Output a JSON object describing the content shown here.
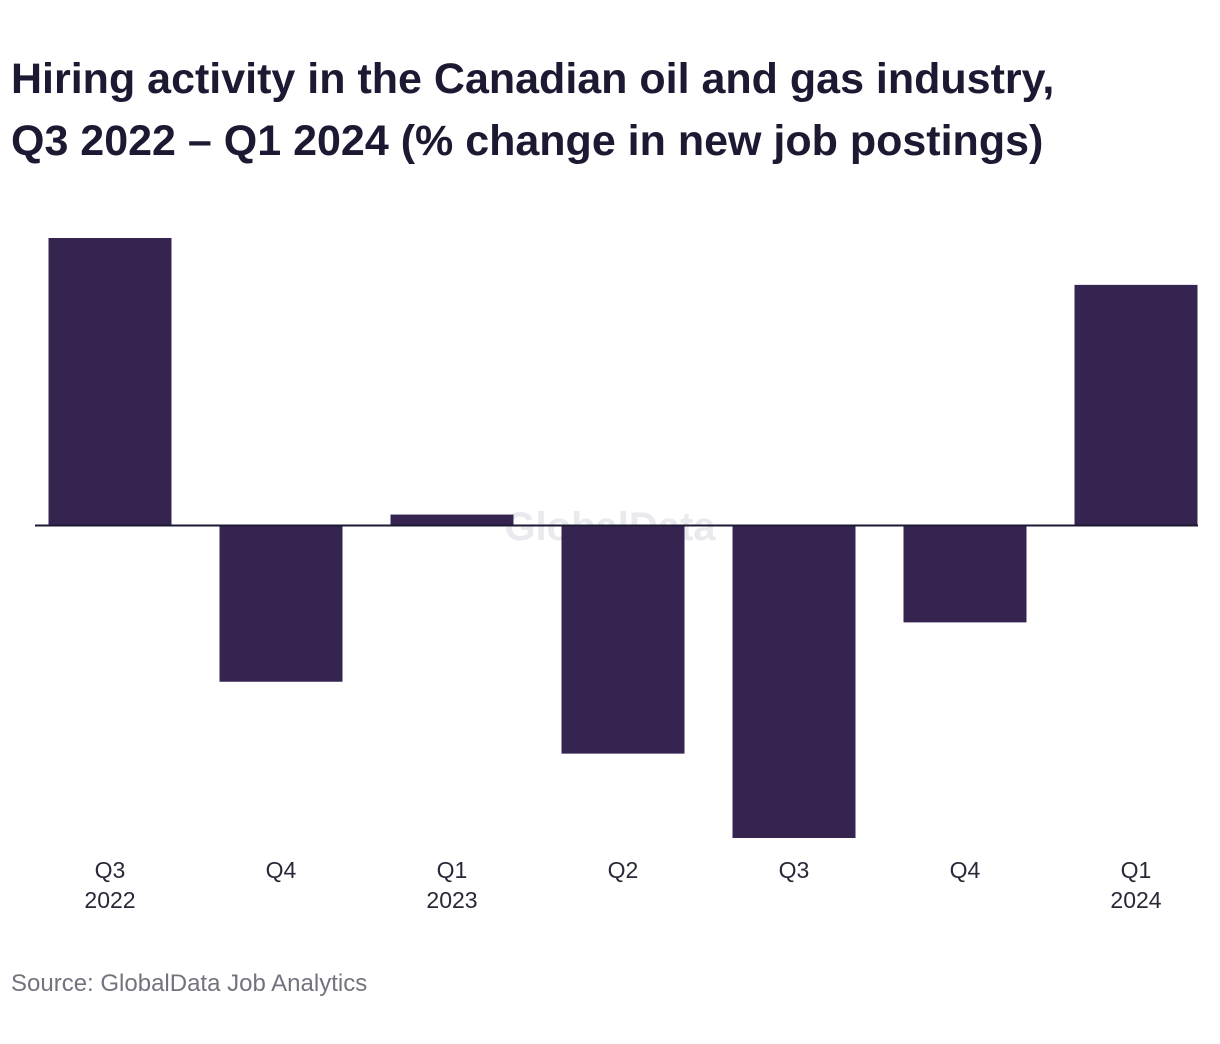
{
  "title": {
    "line1": "Hiring activity in the Canadian oil and gas industry,",
    "line2": "Q3 2022 – Q1 2024 (% change in new job postings)"
  },
  "watermark": "GlobalData",
  "source": "Source: GlobalData Job Analytics",
  "colors": {
    "bar": "#352450",
    "zero_line": "#1c1a33",
    "watermark": "#e9e9ee"
  },
  "chart_data": {
    "type": "bar",
    "title": "Hiring activity in the Canadian oil and gas industry, Q3 2022 – Q1 2024 (% change in new job postings)",
    "categories": [
      [
        "Q3",
        "2022"
      ],
      [
        "Q4"
      ],
      [
        "Q1",
        "2023"
      ],
      [
        "Q2"
      ],
      [
        "Q3"
      ],
      [
        "Q4"
      ],
      [
        "Q1",
        "2024"
      ]
    ],
    "values": [
      9.2,
      -5.0,
      0.35,
      -7.3,
      -10.0,
      -3.1,
      7.7
    ],
    "ylim": [
      -10,
      9.2
    ],
    "xlabel": "",
    "ylabel": "",
    "grid": false,
    "legend": "none"
  }
}
